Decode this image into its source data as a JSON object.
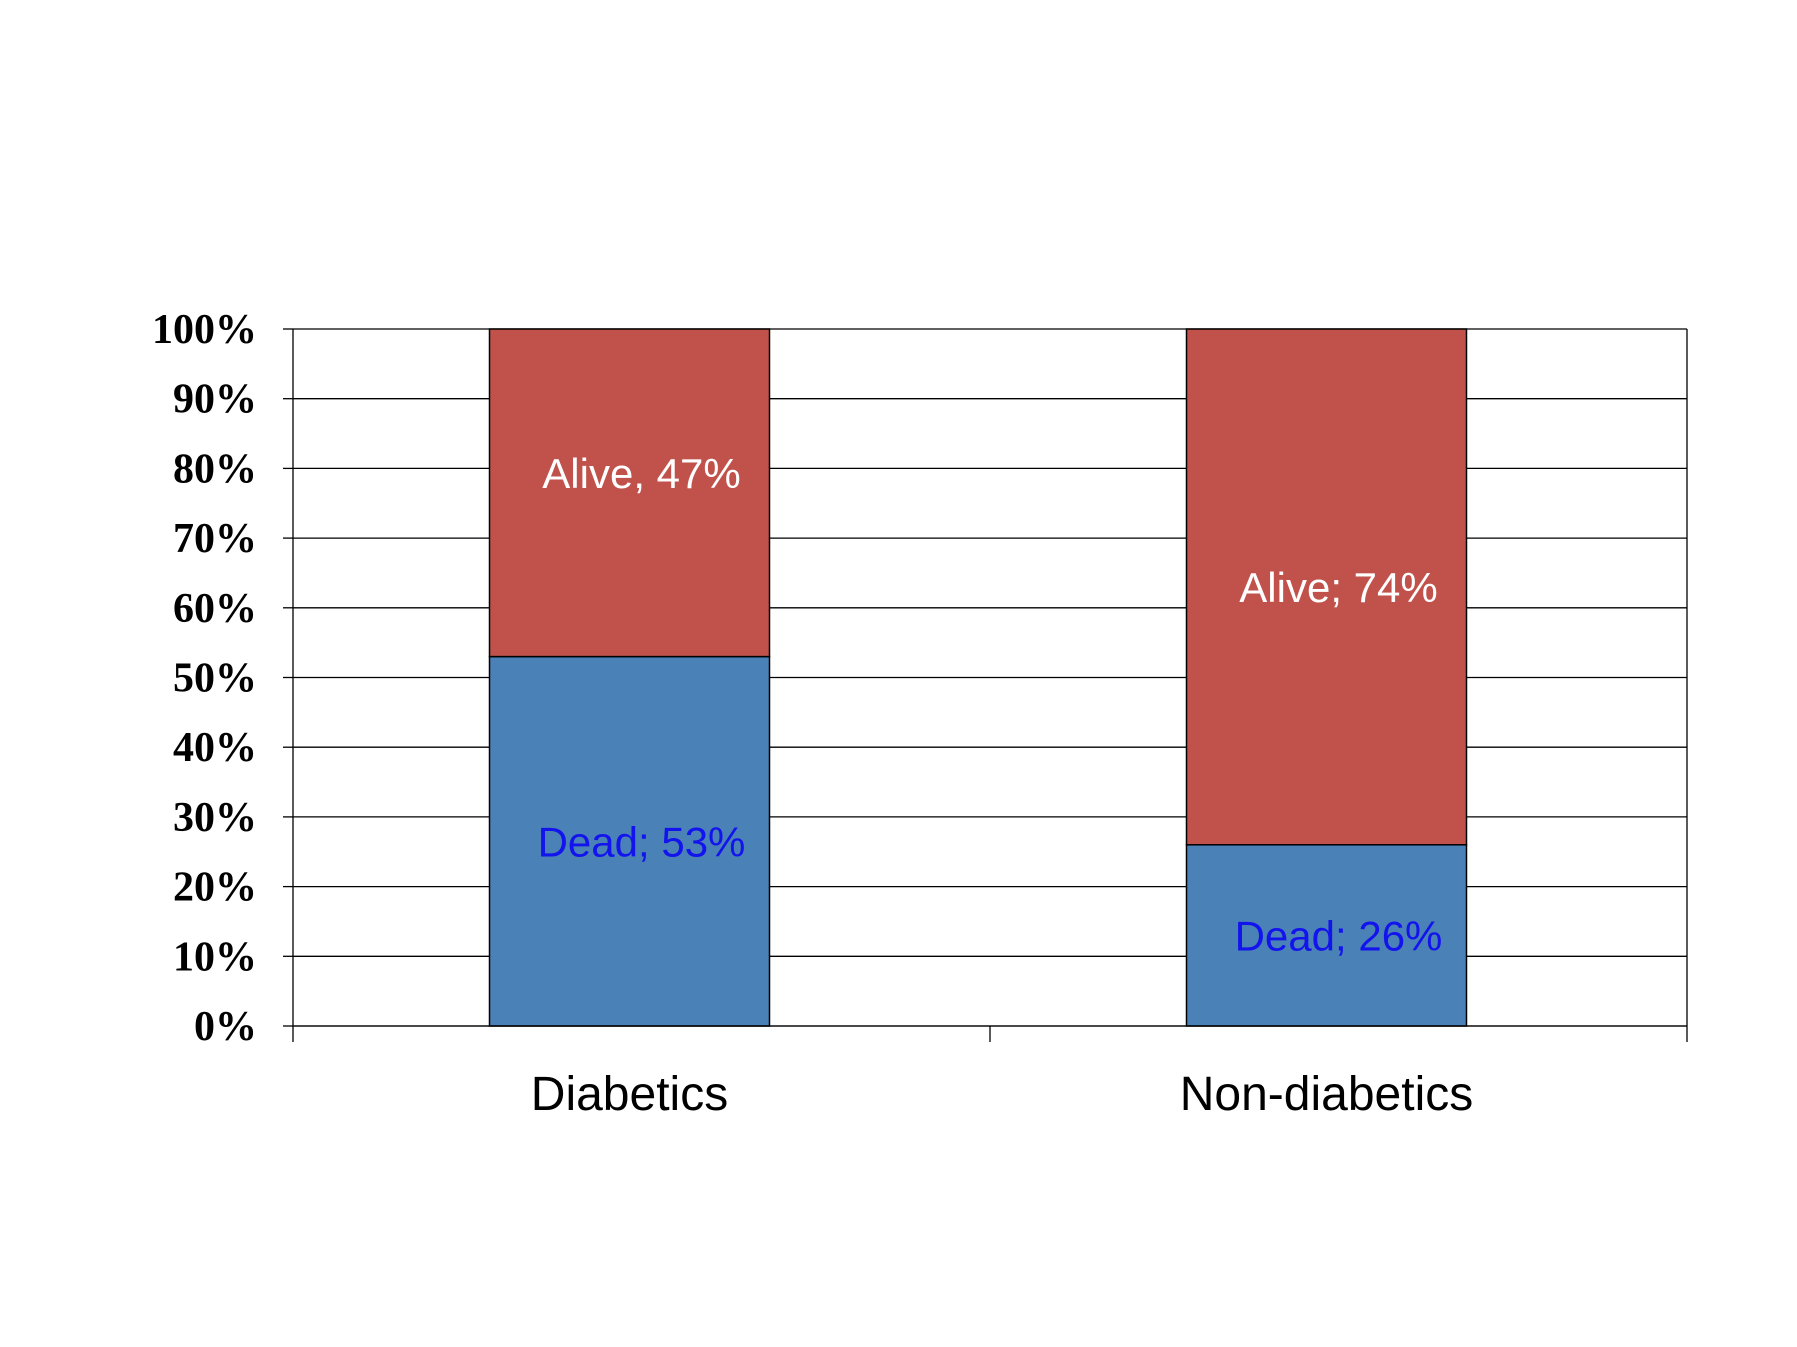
{
  "chart_data": {
    "type": "bar",
    "stacked": true,
    "categories": [
      "Diabetics",
      "Non-diabetics"
    ],
    "series": [
      {
        "name": "Dead",
        "values": [
          53,
          26
        ],
        "color": "#4a81b6",
        "label_color": "#1313ee",
        "labels": [
          "Dead; 53%",
          "Dead; 26%"
        ]
      },
      {
        "name": "Alive",
        "values": [
          47,
          74
        ],
        "color": "#c1524b",
        "label_color": "#ffffff",
        "labels": [
          "Alive, 47%",
          "Alive; 74%"
        ]
      }
    ],
    "ylim": [
      0,
      100
    ],
    "yticks": [
      0,
      10,
      20,
      30,
      40,
      50,
      60,
      70,
      80,
      90,
      100
    ],
    "ytick_labels": [
      "0%",
      "10%",
      "20%",
      "30%",
      "40%",
      "50%",
      "60%",
      "70%",
      "80%",
      "90%",
      "100%"
    ],
    "grid": true,
    "legend": "none",
    "title": "",
    "xlabel": "",
    "ylabel": ""
  }
}
